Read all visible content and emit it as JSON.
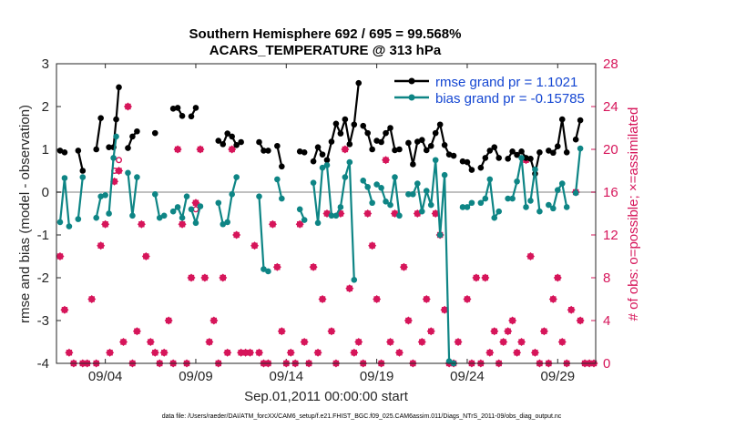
{
  "chart_data": {
    "type": "line",
    "title_line1": "Southern Hemisphere 692 / 695 = 99.568%",
    "title_line2": "ACARS_TEMPERATURE @ 313 hPa",
    "ylabel_left": "rmse and bias (model - observation)",
    "ylabel_right": "# of obs: o=possible; ×=assimilated",
    "xlabel": "Sep.01,2011 00:00:00 start",
    "footnote": "data file: /Users/raeder/DAI/ATM_forcXX/CAM6_setup/f.e21.FHIST_BGC.f09_025.CAM6assim.011/Diags_NTrS_2011-09/obs_diag_output.nc",
    "x_tick_labels": [
      "09/04",
      "09/09",
      "09/14",
      "09/19",
      "09/24",
      "09/29"
    ],
    "x_tick_days": [
      4,
      9,
      14,
      19,
      24,
      29
    ],
    "xlim": [
      1.3,
      31.1
    ],
    "ylim_left": [
      -4,
      3
    ],
    "y_ticks_left": [
      -4,
      -3,
      -2,
      -1,
      0,
      1,
      2,
      3
    ],
    "ylim_right": [
      0,
      28
    ],
    "y_ticks_right": [
      0,
      4,
      8,
      12,
      16,
      20,
      24,
      28
    ],
    "legend_location": "top-right",
    "colors": {
      "rmse": "#000000",
      "bias": "#0e8585",
      "obs": "#d6155a",
      "zero_line": "#c0c0c0"
    },
    "series": [
      {
        "name": "rmse grand pr = 1.1021",
        "segments": [
          [
            [
              1.5,
              0.97
            ],
            [
              1.75,
              0.93
            ]
          ],
          [
            [
              2.5,
              0.97
            ],
            [
              2.75,
              0.5
            ]
          ],
          [
            [
              3.5,
              1.0
            ],
            [
              3.75,
              1.73
            ]
          ],
          [
            [
              4.2,
              1.05
            ],
            [
              4.45,
              1.05
            ],
            [
              4.6,
              1.7
            ],
            [
              4.75,
              2.45
            ]
          ],
          [
            [
              5.25,
              1.03
            ],
            [
              5.5,
              1.3
            ],
            [
              5.75,
              1.42
            ]
          ],
          [
            [
              6.75,
              1.38
            ]
          ],
          [
            [
              7.75,
              1.95
            ],
            [
              8.0,
              1.97
            ],
            [
              8.25,
              1.78
            ]
          ],
          [
            [
              8.75,
              1.77
            ],
            [
              9.0,
              1.97
            ]
          ],
          [
            [
              10.25,
              1.2
            ],
            [
              10.5,
              1.12
            ],
            [
              10.75,
              1.37
            ],
            [
              11.0,
              1.3
            ],
            [
              11.25,
              1.1
            ],
            [
              11.5,
              1.17
            ]
          ],
          [
            [
              12.5,
              1.17
            ],
            [
              12.75,
              0.97
            ],
            [
              13.0,
              0.97
            ]
          ],
          [
            [
              13.5,
              1.08
            ],
            [
              13.75,
              0.6
            ]
          ],
          [
            [
              14.75,
              0.95
            ],
            [
              15.0,
              0.93
            ]
          ],
          [
            [
              15.5,
              0.72
            ],
            [
              15.75,
              1.05
            ],
            [
              16.0,
              0.88
            ]
          ],
          [
            [
              16.25,
              0.75
            ],
            [
              16.5,
              1.18
            ],
            [
              16.75,
              1.6
            ],
            [
              17.0,
              1.37
            ],
            [
              17.25,
              1.7
            ],
            [
              17.5,
              1.12
            ],
            [
              17.75,
              1.58
            ],
            [
              18.0,
              2.55
            ]
          ],
          [
            [
              18.25,
              1.55
            ],
            [
              18.5,
              1.38
            ],
            [
              18.75,
              1.0
            ]
          ],
          [
            [
              19.0,
              1.2
            ],
            [
              19.25,
              1.17
            ],
            [
              19.5,
              1.38
            ],
            [
              19.75,
              1.5
            ],
            [
              20.0,
              0.98
            ],
            [
              20.25,
              1.0
            ]
          ],
          [
            [
              20.75,
              1.15
            ],
            [
              21.0,
              0.65
            ],
            [
              21.25,
              1.18
            ],
            [
              21.5,
              1.22
            ],
            [
              21.75,
              0.98
            ],
            [
              22.0,
              1.08
            ],
            [
              22.25,
              1.38
            ],
            [
              22.5,
              1.58
            ],
            [
              22.75,
              1.1
            ],
            [
              23.0,
              0.88
            ],
            [
              23.25,
              0.85
            ]
          ],
          [
            [
              23.75,
              0.72
            ],
            [
              24.0,
              0.7
            ],
            [
              24.25,
              0.52
            ]
          ],
          [
            [
              24.75,
              0.57
            ],
            [
              25.0,
              0.8
            ],
            [
              25.25,
              0.97
            ],
            [
              25.5,
              1.05
            ],
            [
              25.75,
              0.8
            ]
          ],
          [
            [
              26.25,
              0.78
            ],
            [
              26.5,
              0.95
            ],
            [
              26.75,
              0.87
            ],
            [
              27.0,
              0.95
            ],
            [
              27.25,
              0.8
            ]
          ],
          [
            [
              27.5,
              0.78
            ],
            [
              27.75,
              0.43
            ],
            [
              28.0,
              0.93
            ]
          ],
          [
            [
              28.5,
              0.97
            ],
            [
              28.75,
              0.92
            ],
            [
              29.0,
              1.07
            ],
            [
              29.25,
              1.7
            ],
            [
              29.5,
              0.93
            ]
          ],
          [
            [
              30.0,
              1.23
            ],
            [
              30.25,
              1.68
            ]
          ]
        ]
      },
      {
        "name": "bias grand pr = -0.15785",
        "segments": [
          [
            [
              1.5,
              -0.7
            ],
            [
              1.75,
              0.33
            ],
            [
              2.0,
              -0.8
            ]
          ],
          [
            [
              2.5,
              -0.63
            ],
            [
              2.75,
              0.35
            ]
          ],
          [
            [
              3.5,
              -0.6
            ],
            [
              3.75,
              -0.1
            ],
            [
              4.0,
              -0.07
            ]
          ],
          [
            [
              4.2,
              -0.5
            ],
            [
              4.45,
              0.8
            ],
            [
              4.6,
              1.3
            ]
          ],
          [
            [
              5.25,
              0.45
            ],
            [
              5.5,
              -0.55
            ],
            [
              5.75,
              0.35
            ]
          ],
          [
            [
              6.75,
              -0.05
            ],
            [
              7.0,
              -0.6
            ],
            [
              7.25,
              -0.55
            ]
          ],
          [
            [
              7.75,
              -0.45
            ],
            [
              8.0,
              -0.35
            ],
            [
              8.25,
              -0.6
            ],
            [
              8.5,
              -0.1
            ]
          ],
          [
            [
              8.75,
              -0.4
            ],
            [
              9.0,
              -0.72
            ],
            [
              9.25,
              -0.33
            ]
          ],
          [
            [
              10.25,
              -0.25
            ],
            [
              10.5,
              -0.75
            ],
            [
              10.75,
              -0.7
            ],
            [
              11.0,
              -0.05
            ],
            [
              11.25,
              0.35
            ]
          ],
          [
            [
              12.5,
              -0.1
            ],
            [
              12.75,
              -1.8
            ],
            [
              13.0,
              -1.85
            ]
          ],
          [
            [
              13.5,
              0.3
            ],
            [
              13.75,
              -0.15
            ]
          ],
          [
            [
              14.75,
              -0.4
            ],
            [
              15.0,
              -0.65
            ]
          ],
          [
            [
              15.5,
              0.22
            ],
            [
              15.75,
              -0.72
            ],
            [
              16.0,
              0.57
            ]
          ],
          [
            [
              16.25,
              0.63
            ],
            [
              16.5,
              -0.55
            ],
            [
              16.75,
              -0.55
            ],
            [
              17.0,
              -0.35
            ],
            [
              17.25,
              0.35
            ],
            [
              17.5,
              0.7
            ],
            [
              17.75,
              -2.05
            ]
          ],
          [
            [
              18.25,
              0.27
            ],
            [
              18.5,
              0.12
            ],
            [
              18.75,
              -0.25
            ]
          ],
          [
            [
              19.0,
              0.18
            ],
            [
              19.25,
              0.1
            ],
            [
              19.5,
              -0.22
            ],
            [
              19.75,
              -0.3
            ],
            [
              20.0,
              0.35
            ],
            [
              20.25,
              -0.55
            ]
          ],
          [
            [
              20.75,
              -0.05
            ],
            [
              21.0,
              -0.05
            ],
            [
              21.25,
              0.2
            ],
            [
              21.5,
              -0.45
            ],
            [
              21.75,
              0.03
            ],
            [
              22.0,
              -0.3
            ],
            [
              22.25,
              0.75
            ],
            [
              22.5,
              -1.0
            ],
            [
              22.75,
              0.4
            ],
            [
              23.0,
              -3.95
            ],
            [
              23.25,
              -4.0
            ]
          ],
          [
            [
              23.75,
              -0.35
            ],
            [
              24.0,
              -0.35
            ],
            [
              24.25,
              -0.25
            ]
          ],
          [
            [
              24.75,
              -0.25
            ],
            [
              25.0,
              -0.15
            ],
            [
              25.25,
              0.3
            ],
            [
              25.5,
              -0.6
            ],
            [
              25.75,
              -0.45
            ]
          ],
          [
            [
              26.25,
              -0.15
            ],
            [
              26.5,
              -0.15
            ],
            [
              26.75,
              0.25
            ],
            [
              27.0,
              0.8
            ],
            [
              27.25,
              -0.35
            ]
          ],
          [
            [
              27.5,
              -0.2
            ],
            [
              27.75,
              0.53
            ],
            [
              28.0,
              -0.45
            ]
          ],
          [
            [
              28.5,
              -0.3
            ],
            [
              28.75,
              -0.38
            ],
            [
              29.0,
              0.05
            ],
            [
              29.25,
              0.2
            ],
            [
              29.5,
              -0.35
            ]
          ],
          [
            [
              30.0,
              -0.02
            ],
            [
              30.25,
              1.02
            ]
          ]
        ]
      }
    ],
    "obs_assimilated": [
      [
        1.5,
        10
      ],
      [
        1.75,
        5
      ],
      [
        2.0,
        1
      ],
      [
        2.25,
        0
      ],
      [
        2.75,
        0
      ],
      [
        3.0,
        0
      ],
      [
        3.25,
        6
      ],
      [
        3.5,
        0
      ],
      [
        3.75,
        11
      ],
      [
        4.0,
        13
      ],
      [
        4.25,
        1
      ],
      [
        4.5,
        17
      ],
      [
        4.75,
        18
      ],
      [
        5.0,
        2
      ],
      [
        5.25,
        24
      ],
      [
        5.5,
        0
      ],
      [
        5.75,
        3
      ],
      [
        6.0,
        13
      ],
      [
        6.25,
        10
      ],
      [
        6.5,
        2
      ],
      [
        6.75,
        1
      ],
      [
        7.0,
        0
      ],
      [
        7.25,
        1
      ],
      [
        7.5,
        4
      ],
      [
        7.75,
        0
      ],
      [
        8.0,
        20
      ],
      [
        8.25,
        13
      ],
      [
        8.5,
        0
      ],
      [
        8.75,
        8
      ],
      [
        9.0,
        15
      ],
      [
        9.25,
        20
      ],
      [
        9.5,
        8
      ],
      [
        9.75,
        2
      ],
      [
        10.0,
        4
      ],
      [
        10.25,
        0
      ],
      [
        10.5,
        8
      ],
      [
        10.75,
        1
      ],
      [
        11.0,
        20
      ],
      [
        11.25,
        12
      ],
      [
        11.5,
        1
      ],
      [
        11.75,
        1
      ],
      [
        12.0,
        1
      ],
      [
        12.25,
        11
      ],
      [
        12.5,
        1
      ],
      [
        12.75,
        0
      ],
      [
        13.0,
        0
      ],
      [
        13.25,
        13
      ],
      [
        13.5,
        9
      ],
      [
        13.75,
        3
      ],
      [
        14.0,
        0
      ],
      [
        14.25,
        1
      ],
      [
        14.5,
        0
      ],
      [
        14.75,
        13
      ],
      [
        15.0,
        2
      ],
      [
        15.25,
        0
      ],
      [
        15.5,
        9
      ],
      [
        15.75,
        1
      ],
      [
        16.0,
        6
      ],
      [
        16.25,
        14
      ],
      [
        16.5,
        3
      ],
      [
        16.75,
        0
      ],
      [
        17.0,
        14
      ],
      [
        17.25,
        20
      ],
      [
        17.5,
        7
      ],
      [
        17.75,
        1
      ],
      [
        18.0,
        2
      ],
      [
        18.25,
        0
      ],
      [
        18.5,
        14
      ],
      [
        18.75,
        11
      ],
      [
        19.0,
        6
      ],
      [
        19.25,
        0
      ],
      [
        19.5,
        19
      ],
      [
        19.75,
        2
      ],
      [
        20.0,
        14
      ],
      [
        20.25,
        1
      ],
      [
        20.5,
        9
      ],
      [
        20.75,
        4
      ],
      [
        21.0,
        0
      ],
      [
        21.25,
        14
      ],
      [
        21.5,
        2
      ],
      [
        21.75,
        6
      ],
      [
        22.0,
        3
      ],
      [
        22.25,
        14
      ],
      [
        22.5,
        12
      ],
      [
        22.75,
        5
      ],
      [
        23.0,
        0
      ],
      [
        23.25,
        0
      ],
      [
        23.5,
        2
      ],
      [
        24.0,
        6
      ],
      [
        24.25,
        0
      ],
      [
        24.5,
        8
      ],
      [
        24.75,
        0
      ],
      [
        25.0,
        8
      ],
      [
        25.25,
        1
      ],
      [
        25.5,
        3
      ],
      [
        25.75,
        0
      ],
      [
        26.0,
        2
      ],
      [
        26.25,
        3
      ],
      [
        26.5,
        4
      ],
      [
        26.75,
        1
      ],
      [
        27.0,
        2
      ],
      [
        27.25,
        19
      ],
      [
        27.5,
        10
      ],
      [
        27.75,
        1
      ],
      [
        28.0,
        0
      ],
      [
        28.25,
        3
      ],
      [
        28.5,
        0
      ],
      [
        28.75,
        6
      ],
      [
        29.0,
        8
      ],
      [
        29.25,
        2
      ],
      [
        29.5,
        0
      ],
      [
        29.75,
        5
      ],
      [
        30.0,
        16
      ],
      [
        30.25,
        4
      ],
      [
        30.5,
        0
      ],
      [
        30.75,
        0
      ],
      [
        31.0,
        0
      ]
    ],
    "obs_possible": [
      [
        4.5,
        18
      ],
      [
        4.75,
        19
      ],
      [
        9.0,
        14.4
      ]
    ]
  }
}
